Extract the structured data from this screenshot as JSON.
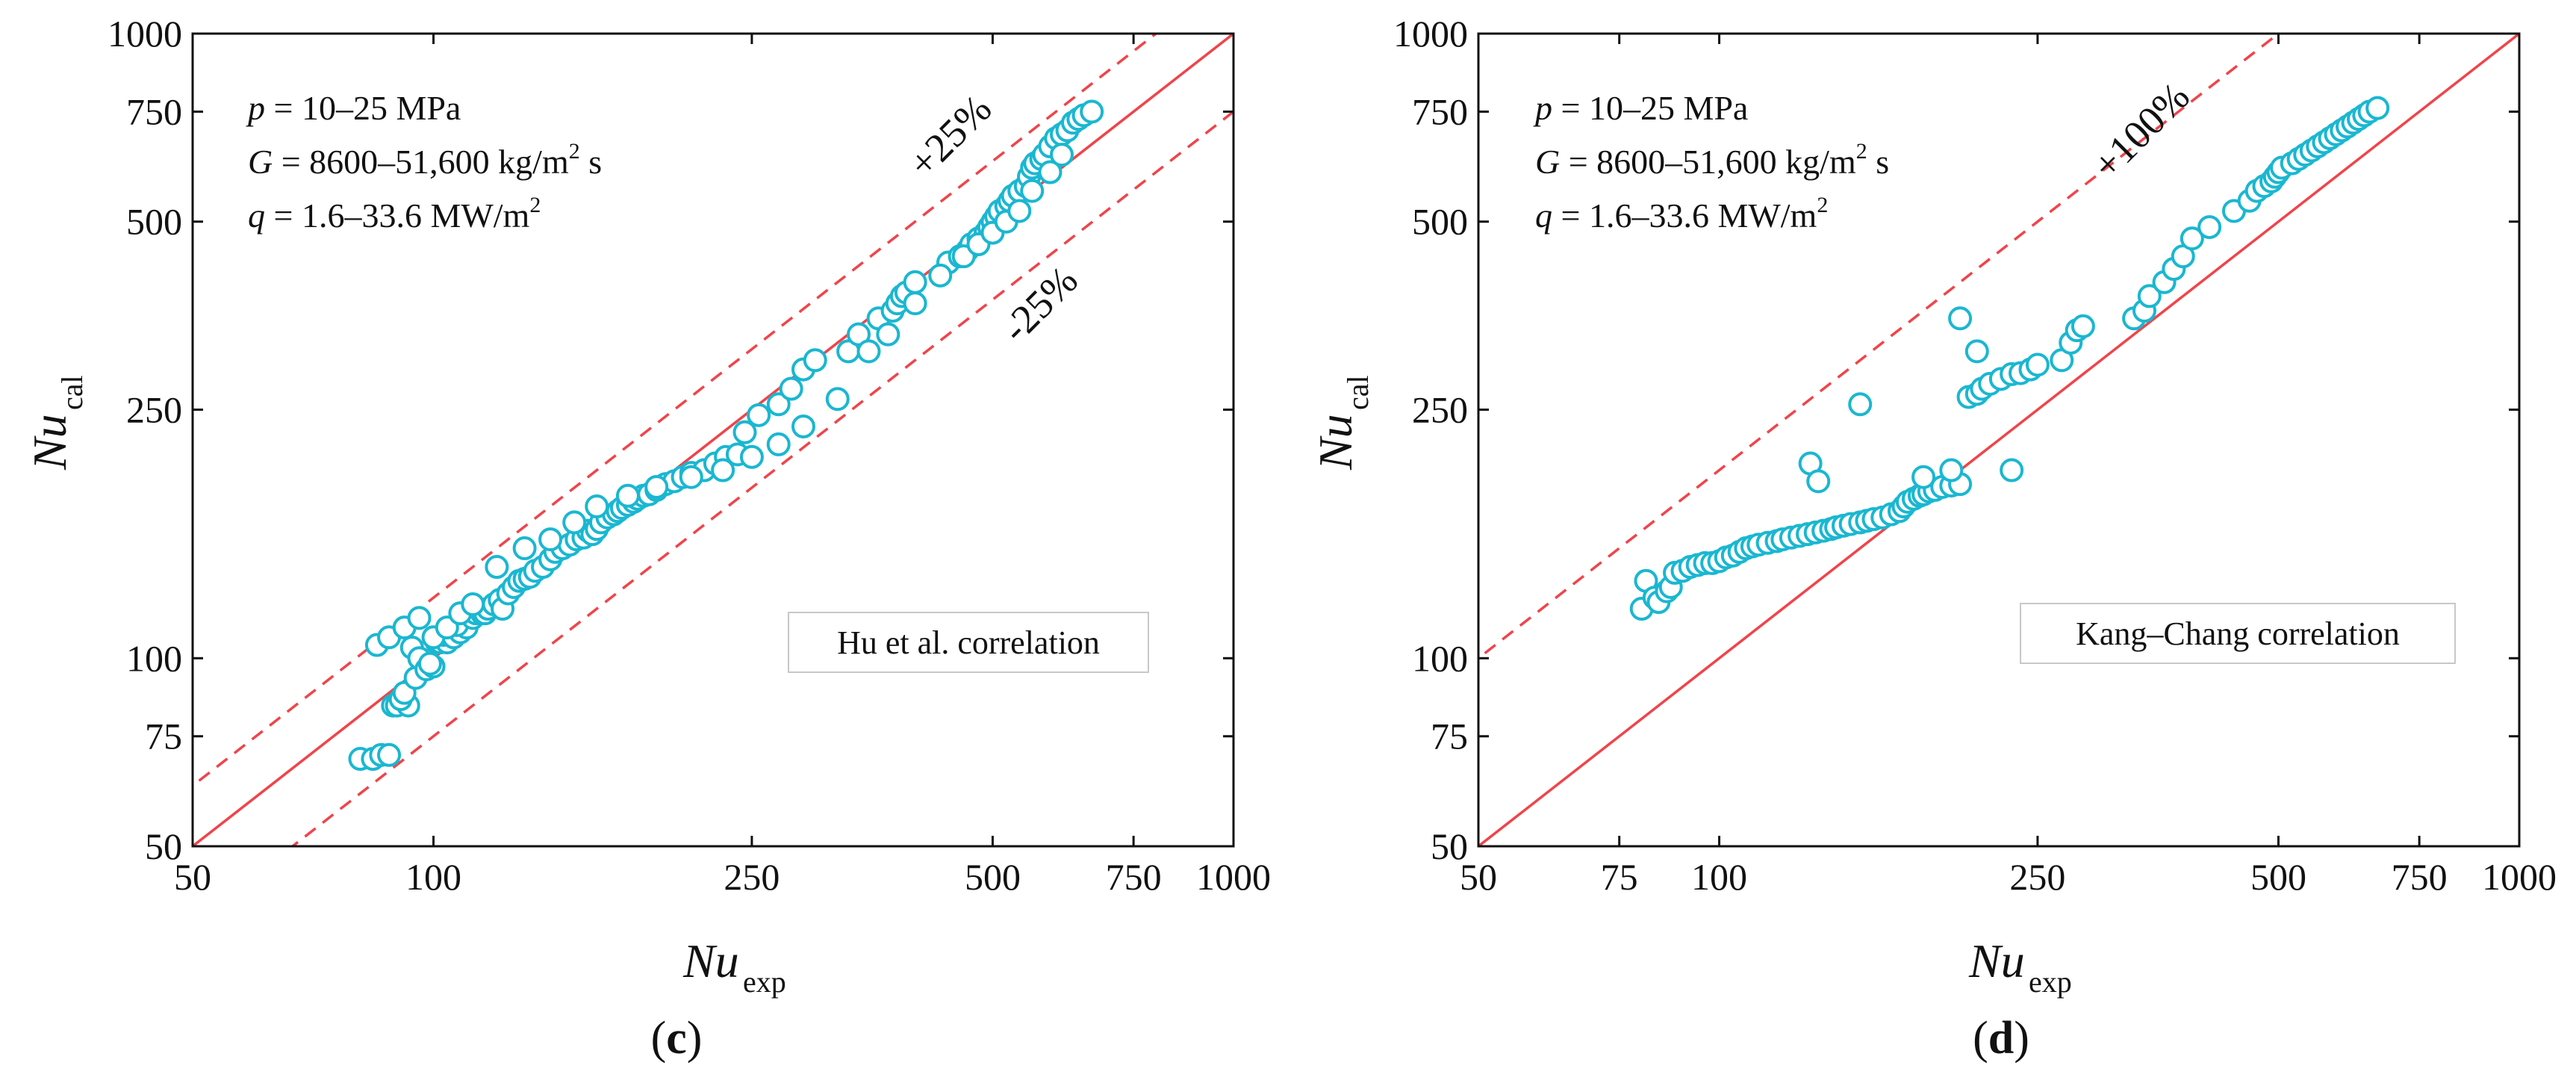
{
  "chart_data": [
    {
      "type": "scatter",
      "panel": "c",
      "scale": "log-log",
      "xlim": [
        50,
        1000
      ],
      "ylim": [
        50,
        1000
      ],
      "xticks": [
        50,
        100,
        250,
        500,
        750,
        1000
      ],
      "xtick_labels": [
        "50",
        "100",
        "250",
        "500",
        "750",
        "1000"
      ],
      "yticks": [
        50,
        75,
        100,
        250,
        500,
        750,
        1000
      ],
      "ytick_labels": [
        "50",
        "75",
        "100",
        "250",
        "500",
        "750",
        "1000"
      ],
      "xlabel": "Nu",
      "xlabel_sub": "exp",
      "ylabel": "Nu",
      "ylabel_sub": "cal",
      "caption_letter": "c",
      "legend_text": "Hu et al. correlation",
      "conditions": {
        "p": {
          "sym": "p",
          "text": " = 10–25 MPa"
        },
        "G": {
          "sym": "G",
          "text": " = 8600–51,600 kg/m",
          "sup": "2",
          "tail": " s"
        },
        "q": {
          "sym": "q",
          "text": " = 1.6–33.6 MW/m",
          "sup": "2"
        }
      },
      "lines": [
        {
          "name": "parity",
          "factor": 1.0,
          "style": "solid",
          "color": "#f0444a",
          "label": ""
        },
        {
          "name": "upper",
          "factor": 1.25,
          "style": "dashed",
          "color": "#f0444a",
          "label": "+25%"
        },
        {
          "name": "lower",
          "factor": 0.75,
          "style": "dashed",
          "color": "#f0444a",
          "label": "-25%"
        }
      ],
      "marker": {
        "color": "#1ab7d1",
        "shape": "open-circle"
      },
      "series": [
        {
          "name": "Hu et al. correlation",
          "x": [
            81,
            84,
            86,
            88,
            89,
            90,
            93,
            91,
            92,
            95,
            94,
            96,
            98,
            100,
            99,
            101,
            102,
            104,
            103,
            106,
            108,
            110,
            107,
            112,
            113,
            115,
            116,
            117,
            119,
            121,
            122,
            124,
            126,
            128,
            130,
            132,
            134,
            137,
            140,
            142,
            145,
            148,
            151,
            154,
            156,
            158,
            160,
            162,
            165,
            168,
            170,
            172,
            175,
            178,
            180,
            183,
            186,
            190,
            195,
            200,
            205,
            210,
            218,
            225,
            232,
            240,
            245,
            255,
            270,
            280,
            290,
            300,
            330,
            340,
            360,
            375,
            380,
            385,
            390,
            400,
            440,
            455,
            465,
            470,
            480,
            490,
            495,
            500,
            505,
            510,
            520,
            525,
            530,
            540,
            550,
            555,
            560,
            565,
            575,
            580,
            590,
            600,
            610,
            620,
            630,
            640,
            650,
            665,
            100,
            104,
            108,
            112,
            85,
            88,
            92,
            96,
            120,
            130,
            140,
            150,
            160,
            175,
            190,
            210,
            230,
            250,
            270,
            290,
            320,
            350,
            370,
            400,
            430,
            460,
            480,
            500,
            520,
            540,
            560,
            590,
            610
          ],
          "y": [
            69,
            69,
            70,
            70,
            84,
            84,
            84,
            86,
            88,
            93,
            104,
            100,
            96,
            97,
            98,
            106,
            106,
            106,
            109,
            108,
            110,
            112,
            113,
            116,
            118,
            118,
            118,
            120,
            122,
            124,
            120,
            127,
            130,
            133,
            134,
            135,
            138,
            140,
            144,
            148,
            150,
            152,
            155,
            156,
            160,
            158,
            161,
            165,
            168,
            170,
            172,
            174,
            176,
            178,
            180,
            182,
            183,
            186,
            190,
            192,
            195,
            198,
            200,
            205,
            210,
            212,
            230,
            245,
            255,
            270,
            290,
            300,
            310,
            330,
            350,
            360,
            370,
            380,
            385,
            400,
            430,
            440,
            450,
            460,
            470,
            480,
            490,
            500,
            510,
            520,
            530,
            540,
            550,
            560,
            570,
            590,
            610,
            620,
            630,
            640,
            660,
            680,
            690,
            700,
            720,
            730,
            740,
            750,
            108,
            112,
            118,
            122,
            105,
            108,
            112,
            116,
            140,
            150,
            155,
            165,
            175,
            182,
            188,
            195,
            200,
            210,
            220,
            235,
            260,
            310,
            330,
            370,
            410,
            440,
            460,
            480,
            500,
            520,
            560,
            600,
            640
          ]
        }
      ]
    },
    {
      "type": "scatter",
      "panel": "d",
      "scale": "log-log",
      "xlim": [
        50,
        1000
      ],
      "ylim": [
        50,
        1000
      ],
      "xticks": [
        50,
        75,
        100,
        250,
        500,
        750,
        1000
      ],
      "xtick_labels": [
        "50",
        "75",
        "100",
        "250",
        "500",
        "750",
        "1000"
      ],
      "yticks": [
        50,
        75,
        100,
        250,
        500,
        750,
        1000
      ],
      "ytick_labels": [
        "50",
        "75",
        "100",
        "250",
        "500",
        "750",
        "1000"
      ],
      "xlabel": "Nu",
      "xlabel_sub": "exp",
      "ylabel": "Nu",
      "ylabel_sub": "cal",
      "caption_letter": "d",
      "legend_text": "Kang–Chang correlation",
      "conditions": {
        "p": {
          "sym": "p",
          "text": " = 10–25 MPa"
        },
        "G": {
          "sym": "G",
          "text": " = 8600–51,600 kg/m",
          "sup": "2",
          "tail": " s"
        },
        "q": {
          "sym": "q",
          "text": " = 1.6–33.6 MW/m",
          "sup": "2"
        }
      },
      "lines": [
        {
          "name": "parity",
          "factor": 1.0,
          "style": "solid",
          "color": "#f0444a",
          "label": ""
        },
        {
          "name": "upper",
          "factor": 2.0,
          "style": "dashed",
          "color": "#f0444a",
          "label": "+100%"
        }
      ],
      "marker": {
        "color": "#1ab7d1",
        "shape": "open-circle"
      },
      "series": [
        {
          "name": "Kang–Chang correlation",
          "x": [
            80,
            81,
            83,
            84,
            86,
            87,
            88,
            90,
            92,
            94,
            96,
            98,
            100,
            102,
            104,
            106,
            108,
            110,
            112,
            115,
            118,
            120,
            123,
            126,
            129,
            132,
            135,
            138,
            140,
            143,
            146,
            150,
            153,
            156,
            160,
            164,
            168,
            170,
            172,
            175,
            178,
            180,
            183,
            186,
            190,
            195,
            200,
            205,
            210,
            213,
            218,
            225,
            232,
            238,
            245,
            250,
            268,
            275,
            280,
            285,
            330,
            340,
            345,
            360,
            370,
            380,
            390,
            410,
            440,
            460,
            470,
            480,
            490,
            495,
            500,
            505,
            520,
            530,
            540,
            550,
            560,
            570,
            580,
            590,
            600,
            610,
            620,
            630,
            640,
            650,
            665,
            130,
            133,
            150,
            180,
            195,
            200,
            210,
            232
          ],
          "y": [
            120,
            133,
            125,
            123,
            128,
            130,
            137,
            138,
            140,
            141,
            142,
            142,
            143,
            145,
            146,
            148,
            150,
            151,
            152,
            153,
            154,
            155,
            156,
            157,
            158,
            159,
            160,
            161,
            162,
            163,
            164,
            165,
            166,
            167,
            168,
            170,
            172,
            175,
            178,
            180,
            182,
            183,
            185,
            186,
            188,
            189,
            190,
            262,
            265,
            270,
            275,
            280,
            285,
            286,
            290,
            295,
            300,
            320,
            335,
            340,
            350,
            360,
            380,
            400,
            420,
            440,
            470,
            490,
            520,
            540,
            560,
            570,
            580,
            590,
            600,
            610,
            620,
            630,
            640,
            650,
            660,
            670,
            680,
            690,
            700,
            710,
            720,
            730,
            740,
            750,
            760,
            205,
            192,
            255,
            195,
            200,
            350,
            310,
            200
          ]
        }
      ]
    }
  ]
}
